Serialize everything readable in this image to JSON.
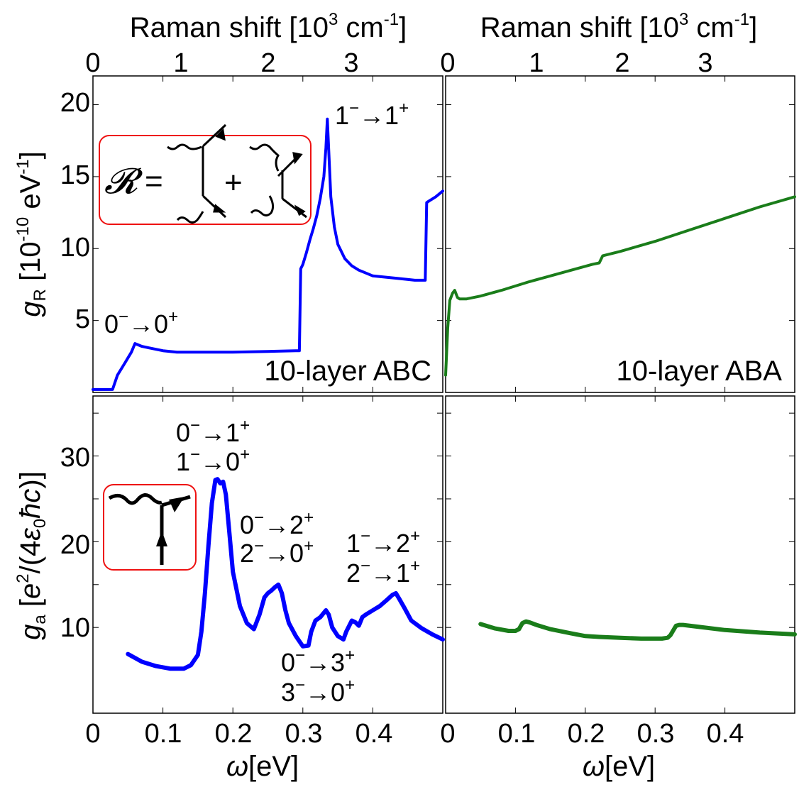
{
  "chart_data": [
    {
      "id": "abc_raman",
      "type": "line",
      "title": "",
      "top_axis": {
        "title": "Raman shift [10",
        "title_sup": "3",
        "title_unit": " cm",
        "title_unit_sup": "-1",
        "title_close": "]",
        "tick_labels": [
          "0",
          "1",
          "2",
          "3"
        ]
      },
      "xlabel": "",
      "ylabel": "g_R [10^-10 eV^-1]",
      "ylabel_parts": {
        "g": "g",
        "sub": "R",
        "pre": " [10",
        "sup": "-10",
        "mid": " eV",
        "sup2": "-1",
        "post": "]"
      },
      "xlim": [
        0,
        0.5
      ],
      "ylim": [
        0,
        22
      ],
      "yticks": [
        5,
        10,
        15,
        20
      ],
      "ytick_labels": [
        "5",
        "10",
        "15",
        "20"
      ],
      "panel_label": "10-layer ABC",
      "color": "#0000ff",
      "annotations": [
        {
          "text": "0",
          "sup1": "−",
          "arrow": "→",
          "text2": "0",
          "sup2": "+",
          "x": 0.015,
          "y": 4.6
        },
        {
          "text": "1",
          "sup1": "−",
          "arrow": "→",
          "text2": "1",
          "sup2": "+",
          "x": 0.342,
          "y": 18.7
        }
      ],
      "inset": {
        "symbol": "𝓡",
        "eq": "=",
        "plus": "+"
      },
      "series": [
        {
          "name": "10-layer ABC",
          "x": [
            0.0,
            0.01,
            0.02,
            0.028,
            0.035,
            0.045,
            0.055,
            0.06,
            0.07,
            0.08,
            0.1,
            0.12,
            0.15,
            0.2,
            0.25,
            0.29,
            0.295,
            0.297,
            0.3,
            0.305,
            0.31,
            0.315,
            0.32,
            0.325,
            0.33,
            0.333,
            0.335,
            0.337,
            0.34,
            0.345,
            0.35,
            0.36,
            0.37,
            0.38,
            0.39,
            0.4,
            0.42,
            0.44,
            0.46,
            0.47,
            0.475,
            0.477,
            0.48,
            0.49,
            0.5
          ],
          "y": [
            0.2,
            0.2,
            0.2,
            0.2,
            1.2,
            2.0,
            2.8,
            3.4,
            3.2,
            3.1,
            2.9,
            2.8,
            2.8,
            2.8,
            2.85,
            2.9,
            2.9,
            8.6,
            8.9,
            9.7,
            10.6,
            11.4,
            12.3,
            13.5,
            15.0,
            17.0,
            19.0,
            16.8,
            13.6,
            11.5,
            10.3,
            9.3,
            8.8,
            8.5,
            8.3,
            8.1,
            8.0,
            7.9,
            7.8,
            7.8,
            7.8,
            13.2,
            13.3,
            13.6,
            14.0
          ]
        }
      ]
    },
    {
      "id": "aba_raman",
      "type": "line",
      "top_axis": {
        "title": "Raman shift [10",
        "title_sup": "3",
        "title_unit": " cm",
        "title_unit_sup": "-1",
        "title_close": "]",
        "tick_labels": [
          "0",
          "1",
          "2",
          "3"
        ]
      },
      "xlim": [
        0,
        0.5
      ],
      "ylim": [
        0,
        22
      ],
      "panel_label": "10-layer ABA",
      "color": "#1a7d1a",
      "series": [
        {
          "name": "10-layer ABA",
          "x": [
            0.0,
            0.003,
            0.006,
            0.01,
            0.013,
            0.017,
            0.02,
            0.03,
            0.05,
            0.08,
            0.1,
            0.12,
            0.15,
            0.18,
            0.21,
            0.22,
            0.225,
            0.25,
            0.3,
            0.35,
            0.4,
            0.45,
            0.5
          ],
          "y": [
            1.2,
            4.5,
            6.4,
            6.9,
            7.1,
            6.6,
            6.5,
            6.5,
            6.7,
            7.1,
            7.4,
            7.7,
            8.1,
            8.5,
            8.9,
            9.0,
            9.5,
            9.8,
            10.5,
            11.3,
            12.1,
            12.9,
            13.6
          ]
        }
      ]
    },
    {
      "id": "abc_absorption",
      "type": "line",
      "xlabel": "ω[eV]",
      "xlabel_parts": {
        "omega": "ω",
        "unit": "[eV]"
      },
      "ylabel_parts": {
        "g": "g",
        "sub": "a",
        "pre": " [",
        "e": "e",
        "esup": "2",
        "mid": "/(4",
        "eps": "ε",
        "epssub": "0",
        "hbar": "ħc",
        "post": ")]"
      },
      "xlim": [
        0,
        0.5
      ],
      "ylim": [
        0,
        37
      ],
      "xticks": [
        0,
        0.1,
        0.2,
        0.3,
        0.4
      ],
      "xtick_labels": [
        "0",
        "0.1",
        "0.2",
        "0.3",
        "0.4"
      ],
      "yticks": [
        10,
        20,
        30
      ],
      "ytick_labels": [
        "10",
        "20",
        "30"
      ],
      "color": "#0000ff",
      "annotations": [
        {
          "line1": [
            "0",
            "−",
            "→",
            "1",
            "+"
          ],
          "line2": [
            "1",
            "−",
            "→",
            "0",
            "+"
          ]
        },
        {
          "line1": [
            "0",
            "−",
            "→",
            "2",
            "+"
          ],
          "line2": [
            "2",
            "−",
            "→",
            "0",
            "+"
          ]
        },
        {
          "line1": [
            "1",
            "−",
            "→",
            "2",
            "+"
          ],
          "line2": [
            "2",
            "−",
            "→",
            "1",
            "+"
          ]
        },
        {
          "line1": [
            "0",
            "−",
            "→",
            "3",
            "+"
          ],
          "line2": [
            "3",
            "−",
            "→",
            "0",
            "+"
          ]
        }
      ],
      "series": [
        {
          "name": "10-layer ABC",
          "x": [
            0.05,
            0.07,
            0.09,
            0.11,
            0.13,
            0.14,
            0.15,
            0.155,
            0.16,
            0.165,
            0.17,
            0.175,
            0.178,
            0.182,
            0.186,
            0.19,
            0.195,
            0.2,
            0.21,
            0.22,
            0.23,
            0.238,
            0.245,
            0.25,
            0.255,
            0.26,
            0.265,
            0.27,
            0.275,
            0.28,
            0.29,
            0.3,
            0.308,
            0.312,
            0.318,
            0.325,
            0.333,
            0.337,
            0.342,
            0.35,
            0.358,
            0.362,
            0.37,
            0.375,
            0.38,
            0.385,
            0.39,
            0.4,
            0.41,
            0.42,
            0.428,
            0.433,
            0.438,
            0.445,
            0.455,
            0.47,
            0.485,
            0.5
          ],
          "y": [
            6.9,
            6.0,
            5.5,
            5.2,
            5.2,
            5.6,
            6.8,
            9.5,
            14.0,
            19.5,
            24.5,
            27.2,
            27.3,
            26.8,
            27.0,
            25.5,
            21.0,
            16.5,
            12.5,
            10.5,
            9.8,
            11.5,
            13.5,
            14.0,
            14.3,
            14.7,
            15.0,
            14.0,
            12.0,
            10.5,
            9.0,
            7.8,
            7.9,
            9.5,
            10.8,
            11.2,
            12.0,
            11.5,
            10.0,
            9.0,
            8.6,
            9.5,
            10.8,
            10.6,
            10.2,
            11.2,
            11.5,
            12.0,
            12.5,
            13.2,
            13.8,
            14.0,
            13.3,
            12.3,
            10.8,
            9.9,
            9.2,
            8.6
          ]
        }
      ]
    },
    {
      "id": "aba_absorption",
      "type": "line",
      "xlabel": "ω[eV]",
      "xlabel_parts": {
        "omega": "ω",
        "unit": "[eV]"
      },
      "xlim": [
        0,
        0.5
      ],
      "ylim": [
        0,
        37
      ],
      "xticks": [
        0,
        0.1,
        0.2,
        0.3,
        0.4
      ],
      "xtick_labels": [
        "0",
        "0.1",
        "0.2",
        "0.3",
        "0.4"
      ],
      "color": "#1a7d1a",
      "series": [
        {
          "name": "10-layer ABA",
          "x": [
            0.05,
            0.07,
            0.09,
            0.1,
            0.105,
            0.11,
            0.115,
            0.12,
            0.13,
            0.15,
            0.18,
            0.2,
            0.22,
            0.25,
            0.28,
            0.31,
            0.318,
            0.322,
            0.327,
            0.33,
            0.335,
            0.34,
            0.36,
            0.4,
            0.45,
            0.5
          ],
          "y": [
            10.4,
            9.9,
            9.6,
            9.6,
            9.8,
            10.5,
            10.7,
            10.6,
            10.3,
            9.8,
            9.3,
            9.0,
            8.9,
            8.8,
            8.7,
            8.7,
            8.8,
            9.1,
            9.8,
            10.2,
            10.3,
            10.3,
            10.1,
            9.7,
            9.4,
            9.2
          ]
        }
      ]
    }
  ]
}
